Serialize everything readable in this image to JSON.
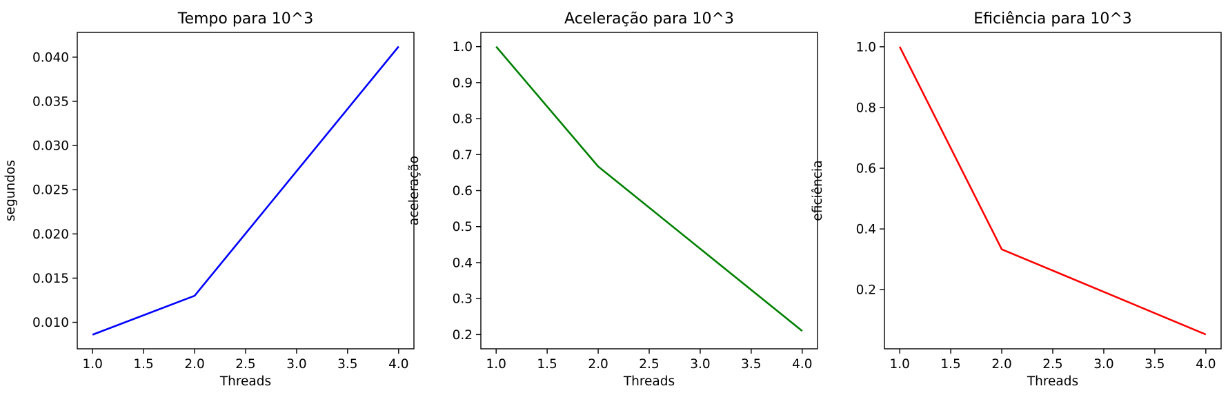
{
  "chart_data": [
    {
      "type": "line",
      "title": "Tempo para 10^3",
      "xlabel": "Threads",
      "ylabel": "segundos",
      "xlim": [
        0.85,
        4.15
      ],
      "ylim": [
        0.007,
        0.0428
      ],
      "xticks": [
        1.0,
        1.5,
        2.0,
        2.5,
        3.0,
        3.5,
        4.0
      ],
      "xtick_labels": [
        "1.0",
        "1.5",
        "2.0",
        "2.5",
        "3.0",
        "3.5",
        "4.0"
      ],
      "yticks": [
        0.01,
        0.015,
        0.02,
        0.025,
        0.03,
        0.035,
        0.04
      ],
      "ytick_labels": [
        "0.010",
        "0.015",
        "0.020",
        "0.025",
        "0.030",
        "0.035",
        "0.040"
      ],
      "grid": false,
      "series": [
        {
          "color": "#0000ff",
          "x": [
            1,
            2,
            4
          ],
          "y": [
            0.0086,
            0.013,
            0.0412
          ]
        }
      ]
    },
    {
      "type": "line",
      "title": "Aceleração para 10^3",
      "xlabel": "Threads",
      "ylabel": "aceleração",
      "xlim": [
        0.85,
        4.15
      ],
      "ylim": [
        0.1605,
        1.0395
      ],
      "xticks": [
        1.0,
        1.5,
        2.0,
        2.5,
        3.0,
        3.5,
        4.0
      ],
      "xtick_labels": [
        "1.0",
        "1.5",
        "2.0",
        "2.5",
        "3.0",
        "3.5",
        "4.0"
      ],
      "yticks": [
        0.2,
        0.3,
        0.4,
        0.5,
        0.6,
        0.7,
        0.8,
        0.9,
        1.0
      ],
      "ytick_labels": [
        "0.2",
        "0.3",
        "0.4",
        "0.5",
        "0.6",
        "0.7",
        "0.8",
        "0.9",
        "1.0"
      ],
      "grid": false,
      "series": [
        {
          "color": "#008000",
          "x": [
            1,
            2,
            4
          ],
          "y": [
            1.0,
            0.667,
            0.21
          ]
        }
      ]
    },
    {
      "type": "line",
      "title": "Eficiência para 10^3",
      "xlabel": "Threads",
      "ylabel": "eficiência",
      "xlim": [
        0.85,
        4.15
      ],
      "ylim": [
        0.0053,
        1.0473
      ],
      "xticks": [
        1.0,
        1.5,
        2.0,
        2.5,
        3.0,
        3.5,
        4.0
      ],
      "xtick_labels": [
        "1.0",
        "1.5",
        "2.0",
        "2.5",
        "3.0",
        "3.5",
        "4.0"
      ],
      "yticks": [
        0.2,
        0.4,
        0.6,
        0.8,
        1.0
      ],
      "ytick_labels": [
        "0.2",
        "0.4",
        "0.6",
        "0.8",
        "1.0"
      ],
      "grid": false,
      "series": [
        {
          "color": "#ff0000",
          "x": [
            1,
            2,
            4
          ],
          "y": [
            1.0,
            0.333,
            0.0526
          ]
        }
      ]
    }
  ]
}
